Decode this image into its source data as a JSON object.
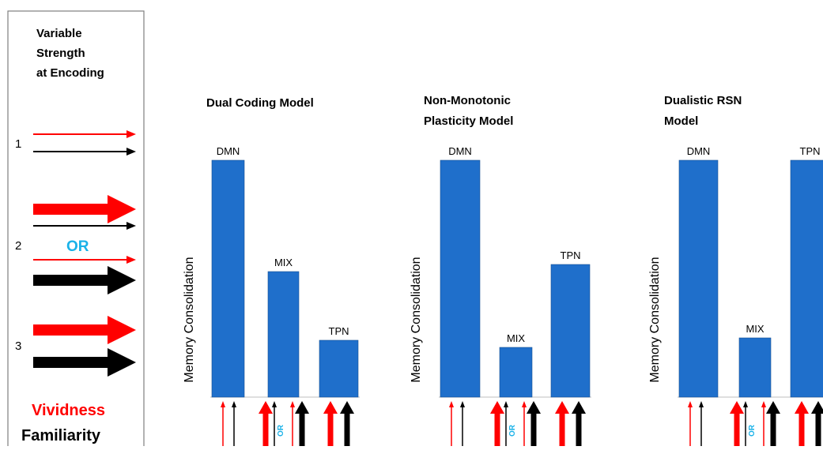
{
  "colors": {
    "vividness": "#ff0000",
    "familiarity": "#000000",
    "bar": "#1f6fcb",
    "or": "#1ab2e8"
  },
  "legend": {
    "title_lines": [
      "Variable",
      "Strength",
      "at Encoding"
    ],
    "row_numbers": [
      "1",
      "2",
      "3"
    ],
    "or_label": "OR",
    "vividness_label": "Vividness",
    "familiarity_label": "Familiarity"
  },
  "y_axis_label": "Memory Consolidation",
  "or_small": "OR",
  "panels": [
    {
      "title_lines": [
        "Dual Coding Model"
      ],
      "bars": [
        {
          "label": "DMN",
          "value": 1.0
        },
        {
          "label": "MIX",
          "value": 0.53
        },
        {
          "label": "TPN",
          "value": 0.24
        }
      ]
    },
    {
      "title_lines": [
        "Non-Monotonic",
        "Plasticity Model"
      ],
      "bars": [
        {
          "label": "DMN",
          "value": 1.0
        },
        {
          "label": "MIX",
          "value": 0.21
        },
        {
          "label": "TPN",
          "value": 0.56
        }
      ]
    },
    {
      "title_lines": [
        "Dualistic RSN",
        "Model"
      ],
      "bars": [
        {
          "label": "DMN",
          "value": 1.0
        },
        {
          "label": "MIX",
          "value": 0.25
        },
        {
          "label": "TPN",
          "value": 1.0
        }
      ]
    }
  ]
}
